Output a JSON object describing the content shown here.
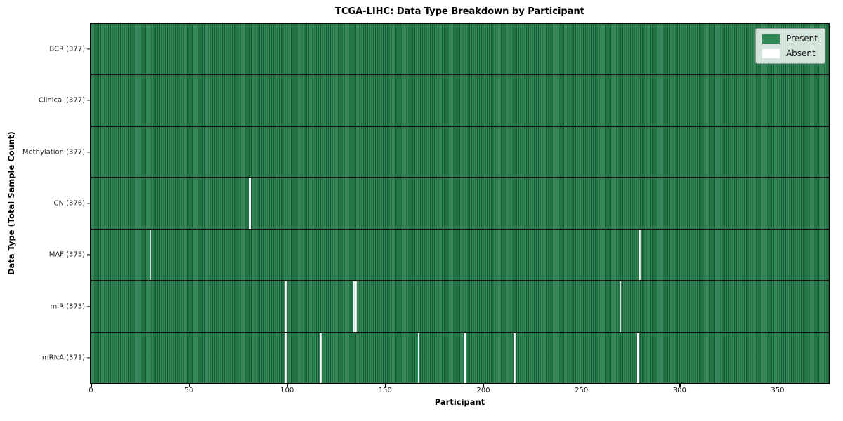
{
  "chart_data": {
    "type": "heatmap",
    "title": "TCGA-LIHC: Data Type Breakdown by Participant",
    "xlabel": "Participant",
    "ylabel": "Data Type (Total Sample Count)",
    "n_participants": 377,
    "x_ticks": [
      0,
      50,
      100,
      150,
      200,
      250,
      300,
      350
    ],
    "legend_position": "upper right",
    "grid": "per-column mesh lines",
    "colors": {
      "present": "#2e8b57",
      "absent": "#ffffff",
      "mesh_line": "#1e5c3c",
      "row_divider": "#101510"
    },
    "legend": [
      {
        "label": "Present",
        "color": "#2e8b57"
      },
      {
        "label": "Absent",
        "color": "#ffffff"
      }
    ],
    "rows": [
      {
        "name": "BCR",
        "label": "BCR (377)",
        "count": 377,
        "absent_columns": []
      },
      {
        "name": "Clinical",
        "label": "Clinical (377)",
        "count": 377,
        "absent_columns": []
      },
      {
        "name": "Methylation",
        "label": "Methylation (377)",
        "count": 377,
        "absent_columns": []
      },
      {
        "name": "CN",
        "label": "CN (376)",
        "count": 376,
        "absent_columns": [
          81
        ]
      },
      {
        "name": "MAF",
        "label": "MAF (375)",
        "count": 375,
        "absent_columns": [
          30,
          280
        ]
      },
      {
        "name": "miR",
        "label": "miR (373)",
        "count": 373,
        "absent_columns": [
          99,
          134,
          135,
          270
        ]
      },
      {
        "name": "mRNA",
        "label": "mRNA (371)",
        "count": 371,
        "absent_columns": [
          99,
          117,
          167,
          191,
          216,
          279
        ]
      }
    ]
  }
}
